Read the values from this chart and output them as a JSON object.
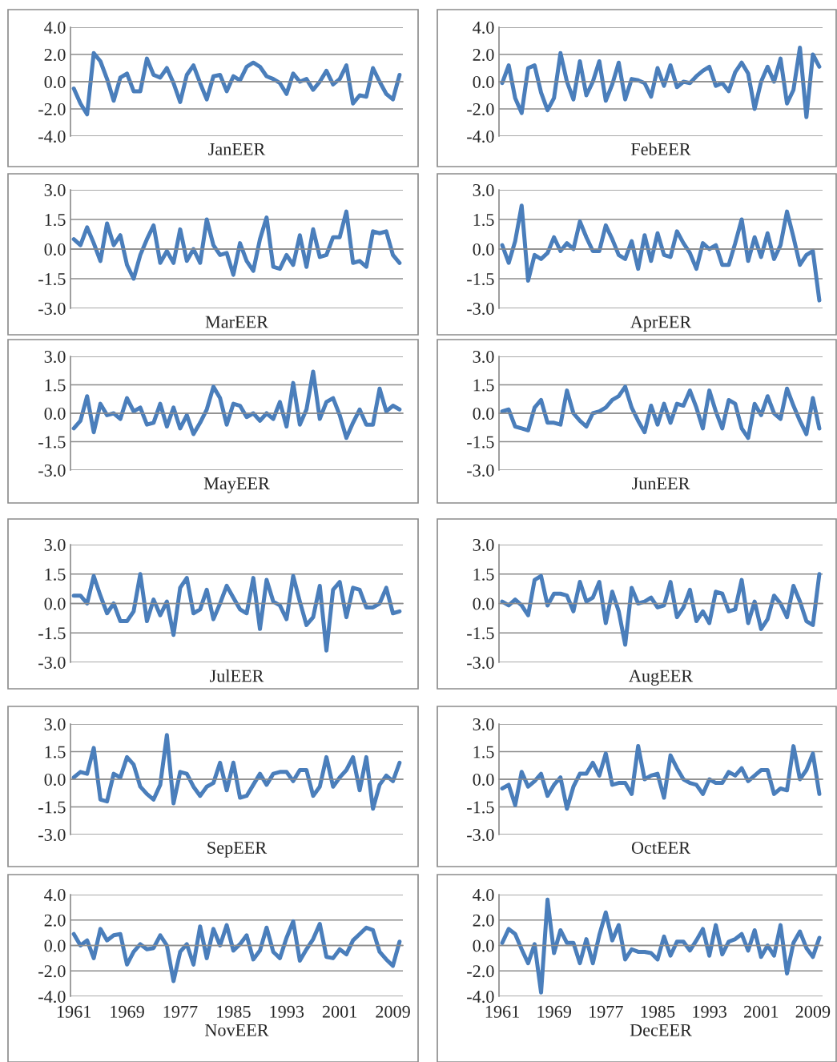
{
  "chart_data": [
    {
      "type": "line",
      "xlabel": "JanEER",
      "x": [
        1961,
        1962,
        1963,
        1964,
        1965,
        1966,
        1967,
        1968,
        1969,
        1970,
        1971,
        1972,
        1973,
        1974,
        1975,
        1976,
        1977,
        1978,
        1979,
        1980,
        1981,
        1982,
        1983,
        1984,
        1985,
        1986,
        1987,
        1988,
        1989,
        1990,
        1991,
        1992,
        1993,
        1994,
        1995,
        1996,
        1997,
        1998,
        1999,
        2000,
        2001,
        2002,
        2003,
        2004,
        2005,
        2006,
        2007,
        2008,
        2009,
        2010
      ],
      "xlim": [
        1960.5,
        2010.5
      ],
      "tick_labels": "y",
      "ylim": [
        -4,
        4
      ],
      "yticks": [
        {
          "value": -4,
          "label": "-4.0"
        },
        {
          "value": -2,
          "label": "-2.0"
        },
        {
          "value": 0,
          "label": "0.0"
        },
        {
          "value": 2,
          "label": "2.0"
        },
        {
          "value": 4,
          "label": "4.0"
        }
      ],
      "grid": "y",
      "marker": "none",
      "line_style": "solid",
      "series": [
        {
          "color": "#4a7ebb",
          "values": [
            -0.5,
            -1.6,
            -2.4,
            2.1,
            1.5,
            0.2,
            -1.4,
            0.3,
            0.6,
            -0.7,
            -0.7,
            1.7,
            0.5,
            0.3,
            1.0,
            -0.1,
            -1.5,
            0.5,
            1.2,
            -0.1,
            -1.3,
            0.4,
            0.5,
            -0.7,
            0.4,
            0.1,
            1.1,
            1.4,
            1.1,
            0.4,
            0.2,
            -0.1,
            -0.9,
            0.6,
            0.0,
            0.2,
            -0.6,
            0.0,
            0.8,
            -0.2,
            0.2,
            1.2,
            -1.6,
            -1.0,
            -1.1,
            1.0,
            0.0,
            -0.9,
            -1.3,
            0.5
          ]
        }
      ]
    },
    {
      "type": "line",
      "xlabel": "FebEER",
      "x": [
        1961,
        1962,
        1963,
        1964,
        1965,
        1966,
        1967,
        1968,
        1969,
        1970,
        1971,
        1972,
        1973,
        1974,
        1975,
        1976,
        1977,
        1978,
        1979,
        1980,
        1981,
        1982,
        1983,
        1984,
        1985,
        1986,
        1987,
        1988,
        1989,
        1990,
        1991,
        1992,
        1993,
        1994,
        1995,
        1996,
        1997,
        1998,
        1999,
        2000,
        2001,
        2002,
        2003,
        2004,
        2005,
        2006,
        2007,
        2008,
        2009,
        2010
      ],
      "xlim": [
        1960.5,
        2010.5
      ],
      "tick_labels": "y",
      "ylim": [
        -4,
        4
      ],
      "yticks": [
        {
          "value": -4,
          "label": "-4.0"
        },
        {
          "value": -2,
          "label": "-2.0"
        },
        {
          "value": 0,
          "label": "0.0"
        },
        {
          "value": 2,
          "label": "2.0"
        },
        {
          "value": 4,
          "label": "4.0"
        }
      ],
      "grid": "y",
      "marker": "none",
      "line_style": "solid",
      "series": [
        {
          "color": "#4a7ebb",
          "values": [
            -0.1,
            1.2,
            -1.2,
            -2.3,
            1.0,
            1.2,
            -0.8,
            -2.1,
            -1.2,
            2.1,
            0.0,
            -1.3,
            1.5,
            -1.0,
            0.0,
            1.5,
            -1.4,
            -0.2,
            1.4,
            -1.3,
            0.2,
            0.1,
            -0.1,
            -1.1,
            1.0,
            -0.3,
            1.2,
            -0.4,
            0.0,
            -0.1,
            0.4,
            0.8,
            1.1,
            -0.3,
            -0.1,
            -0.7,
            0.7,
            1.4,
            0.6,
            -2.0,
            0.0,
            1.1,
            0.0,
            1.7,
            -1.6,
            -0.6,
            2.5,
            -2.6,
            2.0,
            1.1
          ]
        }
      ]
    },
    {
      "type": "line",
      "xlabel": "MarEER",
      "x": [
        1961,
        1962,
        1963,
        1964,
        1965,
        1966,
        1967,
        1968,
        1969,
        1970,
        1971,
        1972,
        1973,
        1974,
        1975,
        1976,
        1977,
        1978,
        1979,
        1980,
        1981,
        1982,
        1983,
        1984,
        1985,
        1986,
        1987,
        1988,
        1989,
        1990,
        1991,
        1992,
        1993,
        1994,
        1995,
        1996,
        1997,
        1998,
        1999,
        2000,
        2001,
        2002,
        2003,
        2004,
        2005,
        2006,
        2007,
        2008,
        2009,
        2010
      ],
      "xlim": [
        1960.5,
        2010.5
      ],
      "tick_labels": "y",
      "ylim": [
        -3,
        3
      ],
      "yticks": [
        {
          "value": -3,
          "label": "-3.0"
        },
        {
          "value": -1.5,
          "label": "-1.5"
        },
        {
          "value": 0,
          "label": "0.0"
        },
        {
          "value": 1.5,
          "label": "1.5"
        },
        {
          "value": 3,
          "label": "3.0"
        }
      ],
      "grid": "y",
      "marker": "none",
      "line_style": "solid",
      "series": [
        {
          "color": "#4a7ebb",
          "values": [
            0.5,
            0.2,
            1.1,
            0.3,
            -0.6,
            1.3,
            0.2,
            0.7,
            -0.8,
            -1.5,
            -0.3,
            0.5,
            1.2,
            -0.7,
            -0.1,
            -0.7,
            1.0,
            -0.6,
            0.0,
            -0.7,
            1.5,
            0.2,
            -0.3,
            -0.2,
            -1.3,
            0.3,
            -0.6,
            -1.1,
            0.5,
            1.6,
            -0.9,
            -1.0,
            -0.3,
            -0.8,
            0.7,
            -0.9,
            1.0,
            -0.4,
            -0.3,
            0.6,
            0.6,
            1.9,
            -0.7,
            -0.6,
            -0.9,
            0.9,
            0.8,
            0.9,
            -0.3,
            -0.7
          ]
        }
      ]
    },
    {
      "type": "line",
      "xlabel": "AprEER",
      "x": [
        1961,
        1962,
        1963,
        1964,
        1965,
        1966,
        1967,
        1968,
        1969,
        1970,
        1971,
        1972,
        1973,
        1974,
        1975,
        1976,
        1977,
        1978,
        1979,
        1980,
        1981,
        1982,
        1983,
        1984,
        1985,
        1986,
        1987,
        1988,
        1989,
        1990,
        1991,
        1992,
        1993,
        1994,
        1995,
        1996,
        1997,
        1998,
        1999,
        2000,
        2001,
        2002,
        2003,
        2004,
        2005,
        2006,
        2007,
        2008,
        2009,
        2010
      ],
      "xlim": [
        1960.5,
        2010.5
      ],
      "tick_labels": "y",
      "ylim": [
        -3,
        3
      ],
      "yticks": [
        {
          "value": -3,
          "label": "-3.0"
        },
        {
          "value": -1.5,
          "label": "-1.5"
        },
        {
          "value": 0,
          "label": "0.0"
        },
        {
          "value": 1.5,
          "label": "1.5"
        },
        {
          "value": 3,
          "label": "3.0"
        }
      ],
      "grid": "y",
      "marker": "none",
      "line_style": "solid",
      "series": [
        {
          "color": "#4a7ebb",
          "values": [
            0.2,
            -0.7,
            0.4,
            2.2,
            -1.6,
            -0.3,
            -0.5,
            -0.2,
            0.6,
            -0.1,
            0.3,
            0.0,
            1.4,
            0.6,
            -0.1,
            -0.1,
            1.2,
            0.5,
            -0.3,
            -0.5,
            0.4,
            -1.0,
            0.7,
            -0.6,
            0.8,
            -0.3,
            -0.4,
            0.9,
            0.3,
            -0.2,
            -1.0,
            0.3,
            0.0,
            0.2,
            -0.8,
            -0.8,
            0.3,
            1.5,
            -0.6,
            0.6,
            -0.4,
            0.8,
            -0.5,
            0.2,
            1.9,
            0.6,
            -0.8,
            -0.3,
            -0.1,
            -2.6
          ]
        }
      ]
    },
    {
      "type": "line",
      "xlabel": "MayEER",
      "x": [
        1961,
        1962,
        1963,
        1964,
        1965,
        1966,
        1967,
        1968,
        1969,
        1970,
        1971,
        1972,
        1973,
        1974,
        1975,
        1976,
        1977,
        1978,
        1979,
        1980,
        1981,
        1982,
        1983,
        1984,
        1985,
        1986,
        1987,
        1988,
        1989,
        1990,
        1991,
        1992,
        1993,
        1994,
        1995,
        1996,
        1997,
        1998,
        1999,
        2000,
        2001,
        2002,
        2003,
        2004,
        2005,
        2006,
        2007,
        2008,
        2009,
        2010
      ],
      "xlim": [
        1960.5,
        2010.5
      ],
      "tick_labels": "y",
      "ylim": [
        -3,
        3
      ],
      "yticks": [
        {
          "value": -3,
          "label": "-3.0"
        },
        {
          "value": -1.5,
          "label": "-1.5"
        },
        {
          "value": 0,
          "label": "0.0"
        },
        {
          "value": 1.5,
          "label": "1.5"
        },
        {
          "value": 3,
          "label": "3.0"
        }
      ],
      "grid": "y",
      "marker": "none",
      "line_style": "solid",
      "series": [
        {
          "color": "#4a7ebb",
          "values": [
            -0.8,
            -0.4,
            0.9,
            -1.0,
            0.5,
            -0.1,
            0.0,
            -0.3,
            0.8,
            0.1,
            0.3,
            -0.6,
            -0.5,
            0.5,
            -0.7,
            0.3,
            -0.8,
            -0.1,
            -1.1,
            -0.5,
            0.2,
            1.4,
            0.8,
            -0.6,
            0.5,
            0.4,
            -0.2,
            0.0,
            -0.4,
            0.0,
            -0.3,
            0.6,
            -0.7,
            1.6,
            -0.6,
            0.2,
            2.2,
            -0.3,
            0.6,
            0.8,
            -0.1,
            -1.3,
            -0.5,
            0.2,
            -0.6,
            -0.6,
            1.3,
            0.1,
            0.4,
            0.2
          ]
        }
      ]
    },
    {
      "type": "line",
      "xlabel": "JunEER",
      "x": [
        1961,
        1962,
        1963,
        1964,
        1965,
        1966,
        1967,
        1968,
        1969,
        1970,
        1971,
        1972,
        1973,
        1974,
        1975,
        1976,
        1977,
        1978,
        1979,
        1980,
        1981,
        1982,
        1983,
        1984,
        1985,
        1986,
        1987,
        1988,
        1989,
        1990,
        1991,
        1992,
        1993,
        1994,
        1995,
        1996,
        1997,
        1998,
        1999,
        2000,
        2001,
        2002,
        2003,
        2004,
        2005,
        2006,
        2007,
        2008,
        2009,
        2010
      ],
      "xlim": [
        1960.5,
        2010.5
      ],
      "tick_labels": "y",
      "ylim": [
        -3,
        3
      ],
      "yticks": [
        {
          "value": -3,
          "label": "-3.0"
        },
        {
          "value": -1.5,
          "label": "-1.5"
        },
        {
          "value": 0,
          "label": "0.0"
        },
        {
          "value": 1.5,
          "label": "1.5"
        },
        {
          "value": 3,
          "label": "3.0"
        }
      ],
      "grid": "y",
      "marker": "none",
      "line_style": "solid",
      "series": [
        {
          "color": "#4a7ebb",
          "values": [
            0.1,
            0.2,
            -0.7,
            -0.8,
            -0.9,
            0.3,
            0.7,
            -0.5,
            -0.5,
            -0.6,
            1.2,
            0.0,
            -0.4,
            -0.7,
            0.0,
            0.1,
            0.3,
            0.7,
            0.9,
            1.4,
            0.3,
            -0.4,
            -1.0,
            0.4,
            -0.6,
            0.5,
            -0.5,
            0.5,
            0.4,
            1.2,
            0.3,
            -0.8,
            1.2,
            0.1,
            -0.8,
            0.7,
            0.5,
            -0.8,
            -1.3,
            0.5,
            -0.1,
            0.9,
            0.0,
            -0.3,
            1.3,
            0.4,
            -0.4,
            -1.1,
            0.8,
            -0.8
          ]
        }
      ]
    },
    {
      "type": "line",
      "xlabel": "JulEER",
      "x": [
        1961,
        1962,
        1963,
        1964,
        1965,
        1966,
        1967,
        1968,
        1969,
        1970,
        1971,
        1972,
        1973,
        1974,
        1975,
        1976,
        1977,
        1978,
        1979,
        1980,
        1981,
        1982,
        1983,
        1984,
        1985,
        1986,
        1987,
        1988,
        1989,
        1990,
        1991,
        1992,
        1993,
        1994,
        1995,
        1996,
        1997,
        1998,
        1999,
        2000,
        2001,
        2002,
        2003,
        2004,
        2005,
        2006,
        2007,
        2008,
        2009,
        2010
      ],
      "xlim": [
        1960.5,
        2010.5
      ],
      "tick_labels": "y",
      "ylim": [
        -3,
        3
      ],
      "yticks": [
        {
          "value": -3,
          "label": "-3.0"
        },
        {
          "value": -1.5,
          "label": "-1.5"
        },
        {
          "value": 0,
          "label": "0.0"
        },
        {
          "value": 1.5,
          "label": "1.5"
        },
        {
          "value": 3,
          "label": "3.0"
        }
      ],
      "grid": "y",
      "marker": "none",
      "line_style": "solid",
      "series": [
        {
          "color": "#4a7ebb",
          "values": [
            0.4,
            0.4,
            0.0,
            1.4,
            0.4,
            -0.5,
            0.0,
            -0.9,
            -0.9,
            -0.4,
            1.5,
            -0.9,
            0.2,
            -0.6,
            0.1,
            -1.6,
            0.8,
            1.3,
            -0.5,
            -0.3,
            0.7,
            -0.8,
            0.0,
            0.9,
            0.3,
            -0.3,
            -0.5,
            1.3,
            -1.3,
            1.2,
            0.1,
            -0.1,
            -0.8,
            1.4,
            0.1,
            -1.1,
            -0.7,
            0.9,
            -2.4,
            0.7,
            1.1,
            -0.7,
            0.8,
            0.7,
            -0.2,
            -0.2,
            0.0,
            0.8,
            -0.5,
            -0.4
          ]
        }
      ]
    },
    {
      "type": "line",
      "xlabel": "AugEER",
      "x": [
        1961,
        1962,
        1963,
        1964,
        1965,
        1966,
        1967,
        1968,
        1969,
        1970,
        1971,
        1972,
        1973,
        1974,
        1975,
        1976,
        1977,
        1978,
        1979,
        1980,
        1981,
        1982,
        1983,
        1984,
        1985,
        1986,
        1987,
        1988,
        1989,
        1990,
        1991,
        1992,
        1993,
        1994,
        1995,
        1996,
        1997,
        1998,
        1999,
        2000,
        2001,
        2002,
        2003,
        2004,
        2005,
        2006,
        2007,
        2008,
        2009,
        2010
      ],
      "xlim": [
        1960.5,
        2010.5
      ],
      "tick_labels": "y",
      "ylim": [
        -3,
        3
      ],
      "yticks": [
        {
          "value": -3,
          "label": "-3.0"
        },
        {
          "value": -1.5,
          "label": "-1.5"
        },
        {
          "value": 0,
          "label": "0.0"
        },
        {
          "value": 1.5,
          "label": "1.5"
        },
        {
          "value": 3,
          "label": "3.0"
        }
      ],
      "grid": "y",
      "marker": "none",
      "line_style": "solid",
      "series": [
        {
          "color": "#4a7ebb",
          "values": [
            0.1,
            -0.1,
            0.2,
            -0.1,
            -0.6,
            1.2,
            1.4,
            -0.1,
            0.5,
            0.5,
            0.4,
            -0.4,
            1.1,
            0.1,
            0.3,
            1.1,
            -1.0,
            0.6,
            -0.4,
            -2.1,
            0.8,
            0.0,
            0.1,
            0.3,
            -0.2,
            -0.1,
            1.1,
            -0.7,
            -0.2,
            0.7,
            -0.9,
            -0.4,
            -1.0,
            0.6,
            0.5,
            -0.4,
            -0.3,
            1.2,
            -1.0,
            0.1,
            -1.3,
            -0.8,
            0.4,
            0.0,
            -0.7,
            0.9,
            0.1,
            -0.9,
            -1.1,
            1.5
          ]
        }
      ]
    },
    {
      "type": "line",
      "xlabel": "SepEER",
      "x": [
        1961,
        1962,
        1963,
        1964,
        1965,
        1966,
        1967,
        1968,
        1969,
        1970,
        1971,
        1972,
        1973,
        1974,
        1975,
        1976,
        1977,
        1978,
        1979,
        1980,
        1981,
        1982,
        1983,
        1984,
        1985,
        1986,
        1987,
        1988,
        1989,
        1990,
        1991,
        1992,
        1993,
        1994,
        1995,
        1996,
        1997,
        1998,
        1999,
        2000,
        2001,
        2002,
        2003,
        2004,
        2005,
        2006,
        2007,
        2008,
        2009,
        2010
      ],
      "xlim": [
        1960.5,
        2010.5
      ],
      "tick_labels": "y",
      "ylim": [
        -3,
        3
      ],
      "yticks": [
        {
          "value": -3,
          "label": "-3.0"
        },
        {
          "value": -1.5,
          "label": "-1.5"
        },
        {
          "value": 0,
          "label": "0.0"
        },
        {
          "value": 1.5,
          "label": "1.5"
        },
        {
          "value": 3,
          "label": "3.0"
        }
      ],
      "grid": "y",
      "marker": "none",
      "line_style": "solid",
      "series": [
        {
          "color": "#4a7ebb",
          "values": [
            0.1,
            0.4,
            0.3,
            1.7,
            -1.1,
            -1.2,
            0.3,
            0.1,
            1.2,
            0.8,
            -0.4,
            -0.8,
            -1.1,
            -0.3,
            2.4,
            -1.3,
            0.4,
            0.3,
            -0.4,
            -0.9,
            -0.4,
            -0.2,
            0.9,
            -0.6,
            0.9,
            -1.0,
            -0.9,
            -0.3,
            0.3,
            -0.3,
            0.3,
            0.4,
            0.4,
            -0.1,
            0.5,
            0.5,
            -0.9,
            -0.4,
            1.2,
            -0.4,
            0.1,
            0.5,
            1.2,
            -0.6,
            1.2,
            -1.6,
            -0.3,
            0.2,
            -0.1,
            0.9
          ]
        }
      ]
    },
    {
      "type": "line",
      "xlabel": "OctEER",
      "x": [
        1961,
        1962,
        1963,
        1964,
        1965,
        1966,
        1967,
        1968,
        1969,
        1970,
        1971,
        1972,
        1973,
        1974,
        1975,
        1976,
        1977,
        1978,
        1979,
        1980,
        1981,
        1982,
        1983,
        1984,
        1985,
        1986,
        1987,
        1988,
        1989,
        1990,
        1991,
        1992,
        1993,
        1994,
        1995,
        1996,
        1997,
        1998,
        1999,
        2000,
        2001,
        2002,
        2003,
        2004,
        2005,
        2006,
        2007,
        2008,
        2009,
        2010
      ],
      "xlim": [
        1960.5,
        2010.5
      ],
      "tick_labels": "y",
      "ylim": [
        -3,
        3
      ],
      "yticks": [
        {
          "value": -3,
          "label": "-3.0"
        },
        {
          "value": -1.5,
          "label": "-1.5"
        },
        {
          "value": 0,
          "label": "0.0"
        },
        {
          "value": 1.5,
          "label": "1.5"
        },
        {
          "value": 3,
          "label": "3.0"
        }
      ],
      "grid": "y",
      "marker": "none",
      "line_style": "solid",
      "series": [
        {
          "color": "#4a7ebb",
          "values": [
            -0.5,
            -0.3,
            -1.4,
            0.4,
            -0.4,
            -0.1,
            0.3,
            -0.9,
            -0.3,
            0.1,
            -1.6,
            -0.4,
            0.3,
            0.3,
            0.9,
            0.2,
            1.4,
            -0.3,
            -0.2,
            -0.2,
            -0.8,
            1.8,
            0.0,
            0.2,
            0.3,
            -1.0,
            1.3,
            0.6,
            0.0,
            -0.2,
            -0.3,
            -0.8,
            0.0,
            -0.2,
            -0.2,
            0.4,
            0.2,
            0.6,
            -0.1,
            0.2,
            0.5,
            0.5,
            -0.8,
            -0.5,
            -0.6,
            1.8,
            0.0,
            0.5,
            1.4,
            -0.8
          ]
        }
      ]
    },
    {
      "type": "line",
      "xlabel": "NovEER",
      "x": [
        1961,
        1962,
        1963,
        1964,
        1965,
        1966,
        1967,
        1968,
        1969,
        1970,
        1971,
        1972,
        1973,
        1974,
        1975,
        1976,
        1977,
        1978,
        1979,
        1980,
        1981,
        1982,
        1983,
        1984,
        1985,
        1986,
        1987,
        1988,
        1989,
        1990,
        1991,
        1992,
        1993,
        1994,
        1995,
        1996,
        1997,
        1998,
        1999,
        2000,
        2001,
        2002,
        2003,
        2004,
        2005,
        2006,
        2007,
        2008,
        2009,
        2010
      ],
      "xlim": [
        1960.5,
        2010.5
      ],
      "xticks": [
        1961,
        1969,
        1977,
        1985,
        1993,
        2001,
        2009
      ],
      "ylim": [
        -4,
        4
      ],
      "yticks": [
        {
          "value": -4,
          "label": "-4.0"
        },
        {
          "value": -2,
          "label": "-2.0"
        },
        {
          "value": 0,
          "label": "0.0"
        },
        {
          "value": 2,
          "label": "2.0"
        },
        {
          "value": 4,
          "label": "4.0"
        }
      ],
      "grid": "y",
      "marker": "none",
      "line_style": "solid",
      "series": [
        {
          "color": "#4a7ebb",
          "values": [
            0.9,
            0.0,
            0.4,
            -1.0,
            1.3,
            0.4,
            0.8,
            0.9,
            -1.5,
            -0.5,
            0.1,
            -0.3,
            -0.2,
            0.8,
            0.0,
            -2.8,
            -0.5,
            0.1,
            -1.5,
            1.5,
            -1.0,
            1.3,
            0.0,
            1.6,
            -0.4,
            0.1,
            0.8,
            -1.1,
            -0.4,
            1.4,
            -0.5,
            -1.0,
            0.6,
            1.9,
            -1.2,
            -0.3,
            0.5,
            1.7,
            -0.9,
            -1.0,
            -0.3,
            -0.7,
            0.4,
            0.9,
            1.4,
            1.2,
            -0.5,
            -1.1,
            -1.6,
            0.3
          ]
        }
      ]
    },
    {
      "type": "line",
      "xlabel": "DecEER",
      "x": [
        1961,
        1962,
        1963,
        1964,
        1965,
        1966,
        1967,
        1968,
        1969,
        1970,
        1971,
        1972,
        1973,
        1974,
        1975,
        1976,
        1977,
        1978,
        1979,
        1980,
        1981,
        1982,
        1983,
        1984,
        1985,
        1986,
        1987,
        1988,
        1989,
        1990,
        1991,
        1992,
        1993,
        1994,
        1995,
        1996,
        1997,
        1998,
        1999,
        2000,
        2001,
        2002,
        2003,
        2004,
        2005,
        2006,
        2007,
        2008,
        2009,
        2010
      ],
      "xlim": [
        1960.5,
        2010.5
      ],
      "xticks": [
        1961,
        1969,
        1977,
        1985,
        1993,
        2001,
        2009
      ],
      "ylim": [
        -4,
        4
      ],
      "yticks": [
        {
          "value": -4,
          "label": "-4.0"
        },
        {
          "value": -2,
          "label": "-2.0"
        },
        {
          "value": 0,
          "label": "0.0"
        },
        {
          "value": 2,
          "label": "2.0"
        },
        {
          "value": 4,
          "label": "4.0"
        }
      ],
      "grid": "y",
      "marker": "none",
      "line_style": "solid",
      "series": [
        {
          "color": "#4a7ebb",
          "values": [
            0.2,
            1.3,
            0.9,
            -0.3,
            -1.4,
            0.1,
            -3.7,
            3.6,
            -0.6,
            1.2,
            0.2,
            0.2,
            -1.4,
            0.5,
            -1.4,
            0.8,
            2.6,
            0.4,
            1.6,
            -1.1,
            -0.3,
            -0.5,
            -0.5,
            -0.6,
            -1.1,
            0.7,
            -0.8,
            0.3,
            0.3,
            -0.4,
            0.4,
            1.3,
            -0.8,
            1.6,
            -0.7,
            0.3,
            0.5,
            0.9,
            -0.4,
            1.2,
            -0.9,
            0.0,
            -0.8,
            1.6,
            -2.2,
            0.2,
            1.1,
            -0.2,
            -0.9,
            0.6
          ]
        }
      ]
    }
  ]
}
